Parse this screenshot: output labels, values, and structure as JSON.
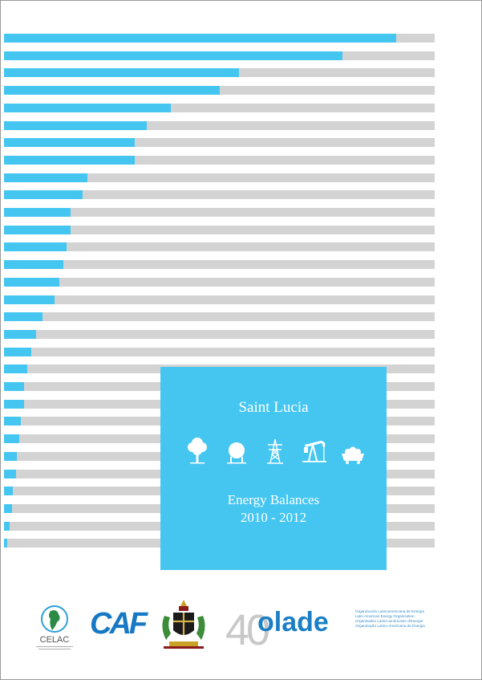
{
  "cover": {
    "country": "Saint Lucia",
    "title_line1": "Energy Balances",
    "title_line2": "2010 - 2012"
  },
  "decor_bars": {
    "fill_fractions": [
      0.91,
      0.785,
      0.545,
      0.5,
      0.388,
      0.332,
      0.304,
      0.304,
      0.193,
      0.183,
      0.155,
      0.155,
      0.146,
      0.137,
      0.128,
      0.118,
      0.09,
      0.075,
      0.063,
      0.054,
      0.046,
      0.046,
      0.039,
      0.036,
      0.029,
      0.027,
      0.02,
      0.019,
      0.013,
      0.008
    ],
    "colors": {
      "fill": "#45c6f1",
      "track": "#d3d3d3"
    }
  },
  "icons": [
    "tree-icon",
    "gas-tank-icon",
    "power-tower-icon",
    "oil-pump-icon",
    "coal-cart-icon"
  ],
  "logos": {
    "celac": "CELAC",
    "caf": "CAF",
    "olade_number": "40",
    "olade": "olade",
    "olade_names": [
      "Organización Latinoamericana de Energía",
      "Latin American Energy Organization",
      "Organisation Latino-américaine d'Energie",
      "Organização Latino-Americana de Energia"
    ]
  }
}
